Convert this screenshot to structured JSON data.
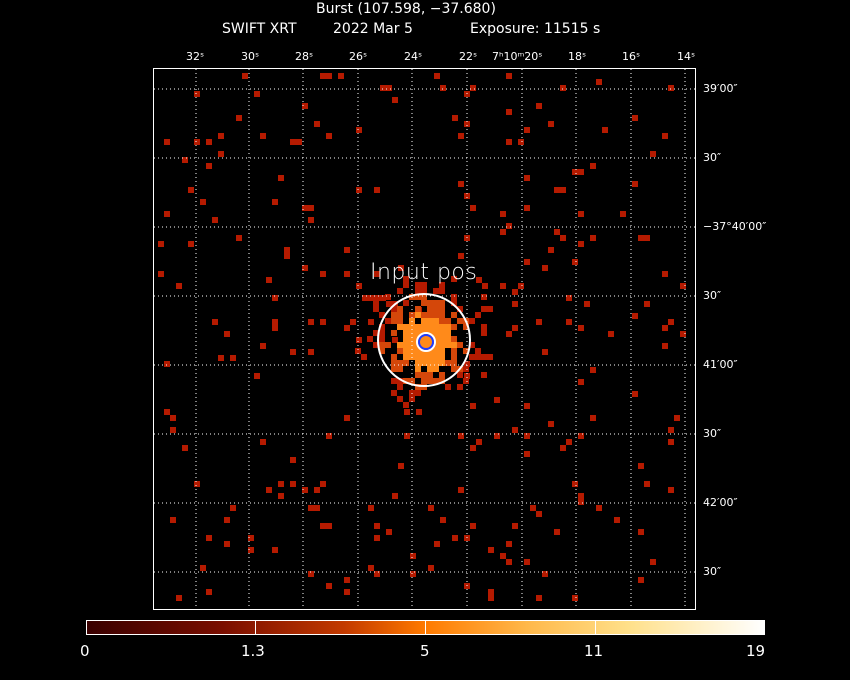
{
  "title": "Burst (107.598, −37.680)",
  "subtitle": {
    "instrument": "SWIFT XRT",
    "date": "2022 Mar  5",
    "exposure": "Exposure: 11515 s"
  },
  "source_label": "Input pos",
  "ra_ticks": [
    "32ˢ",
    "30ˢ",
    "28ˢ",
    "26ˢ",
    "24ˢ",
    "22ˢ",
    "7ʰ10ᵐ20ˢ",
    "18ˢ",
    "16ˢ",
    "14ˢ"
  ],
  "dec_ticks": [
    "39′00″",
    "30″",
    "−37°40′00″",
    "30″",
    "41′00″",
    "30″",
    "42′00″",
    "30″"
  ],
  "colorbar": {
    "labels": [
      "0",
      "1.3",
      "5",
      "11",
      "19"
    ],
    "colors": {
      "low": "#3a0000",
      "mid": "#ff7a00",
      "high": "#ffffff"
    }
  },
  "colors": {
    "background": "#000000",
    "grid": "#ffffff",
    "source_circle": "#ffffff",
    "centroid_circle": "#1f3cff",
    "photon": "#b51a00",
    "photon_bright": "#ff8a1a"
  }
}
